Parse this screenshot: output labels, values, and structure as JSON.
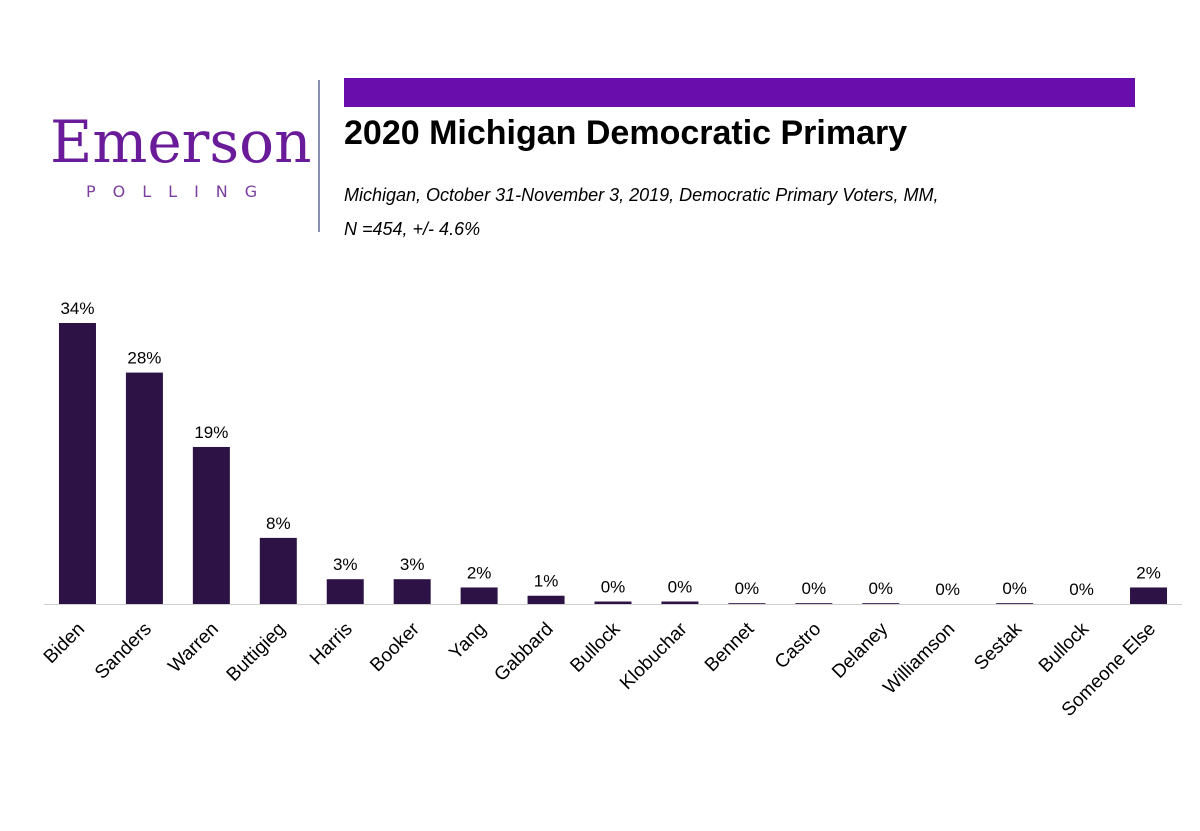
{
  "brand": {
    "logo_word": "Emerson",
    "logo_sub": "POLLING",
    "accent_color": "#6a0dad",
    "bar_color": "#2d1245"
  },
  "header": {
    "title": "2020 Michigan Democratic Primary",
    "subtitle_line1": "Michigan, October 31-November 3, 2019, Democratic Primary Voters, MM,",
    "subtitle_line2": "N =454, +/-  4.6%"
  },
  "chart_data": {
    "type": "bar",
    "categories": [
      "Biden",
      "Sanders",
      "Warren",
      "Buttigieg",
      "Harris",
      "Booker",
      "Yang",
      "Gabbard",
      "Bullock",
      "Klobuchar",
      "Bennet",
      "Castro",
      "Delaney",
      "Williamson",
      "Sestak",
      "Bullock",
      "Someone Else"
    ],
    "values": [
      34,
      28,
      19,
      8,
      3,
      3,
      2,
      1,
      0.3,
      0.3,
      0.1,
      0.1,
      0.1,
      0,
      0.1,
      0,
      2
    ],
    "labels": [
      "34%",
      "28%",
      "19%",
      "8%",
      "3%",
      "3%",
      "2%",
      "1%",
      "0%",
      "0%",
      "0%",
      "0%",
      "0%",
      "0%",
      "0%",
      "0%",
      "2%"
    ],
    "title": "",
    "xlabel": "",
    "ylabel": "",
    "ylim": [
      0,
      34
    ],
    "grid": false,
    "legend": "none"
  }
}
